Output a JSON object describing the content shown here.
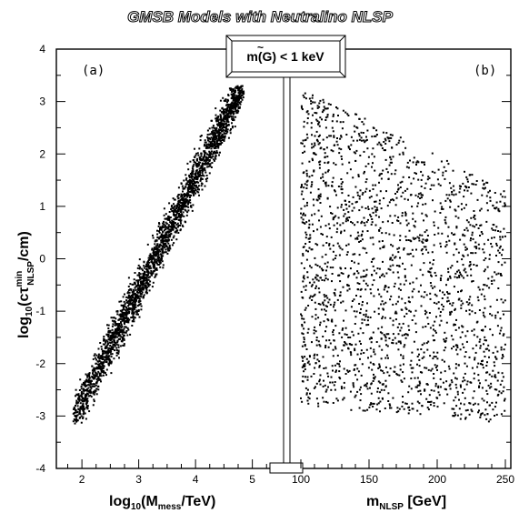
{
  "title": "GMSB Models with Neutralino NLSP",
  "banner": {
    "prefix": "m(",
    "symbol": "G",
    "suffix": ") < 1 keV"
  },
  "chart_data": [
    {
      "type": "scatter",
      "panel_label": "(a)",
      "xlabel": {
        "main": "log",
        "sub1": "10",
        "mid": "(M",
        "sub2": "mess",
        "tail": "/TeV)"
      },
      "ylabel": {
        "main": "log",
        "sub1": "10",
        "mid": "(cτ",
        "sup": "min",
        "sub2": "NLSP",
        "tail": "/cm)"
      },
      "xlim": [
        1.55,
        5.55
      ],
      "ylim": [
        -4,
        4
      ],
      "xticks": [
        2,
        3,
        4,
        5
      ],
      "yticks": [
        -4,
        -3,
        -2,
        -1,
        0,
        1,
        2,
        3,
        4
      ],
      "band": {
        "description": "Dense diagonal scatter band, y rises linearly with x",
        "x_range": [
          1.85,
          4.85
        ],
        "center_line": {
          "slope": 2.15,
          "intercept": -7.05
        },
        "y_min": -3.15,
        "y_max": 3.3,
        "half_width_y": 0.55,
        "n_points": 2600
      }
    },
    {
      "type": "scatter",
      "panel_label": "(b)",
      "xlabel": {
        "main": "m",
        "sub": "NLSP",
        "tail": " [GeV]"
      },
      "xlim": [
        92,
        254
      ],
      "ylim": [
        -4,
        4
      ],
      "xticks": [
        100,
        150,
        200,
        250
      ],
      "yticks": [
        -4,
        -3,
        -2,
        -1,
        0,
        1,
        2,
        3,
        4
      ],
      "region": {
        "description": "Trapezoidal scatter cloud; upper edge falls from 3.3 at 100 GeV to ~1.3 at 250 GeV, lower edge from -2.8 to -3.1",
        "x_range": [
          100,
          250
        ],
        "upper_edge": [
          [
            100,
            3.3
          ],
          [
            250,
            1.3
          ]
        ],
        "lower_edge": [
          [
            100,
            -2.8
          ],
          [
            250,
            -3.15
          ]
        ],
        "n_points": 2100
      }
    }
  ]
}
